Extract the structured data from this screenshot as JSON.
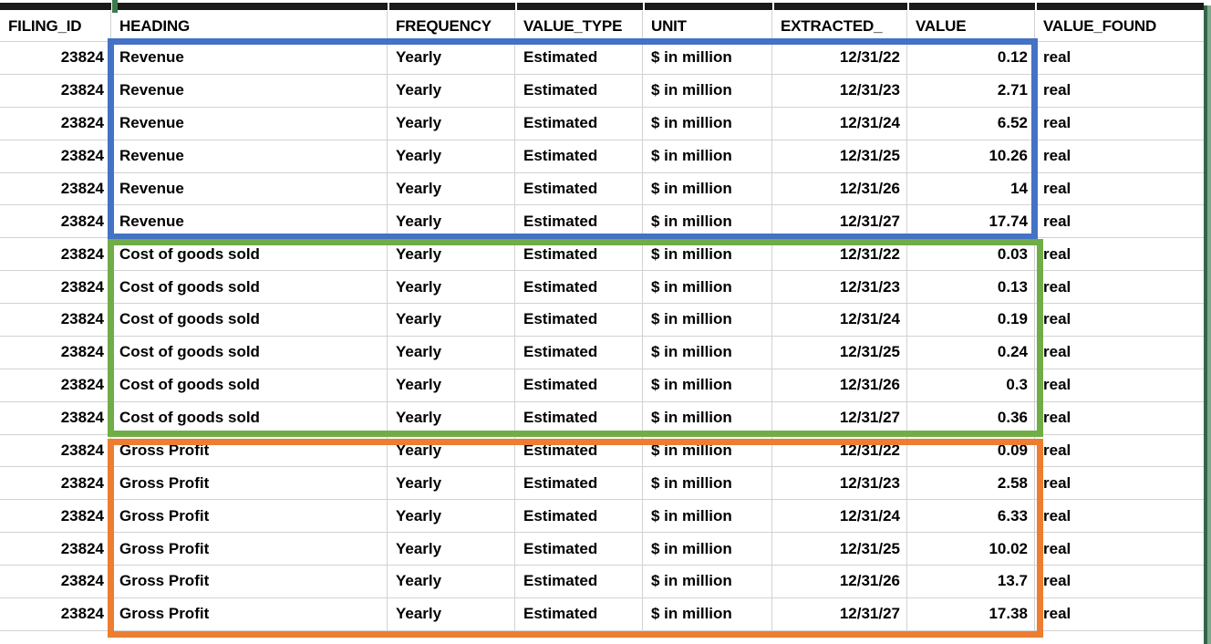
{
  "table": {
    "columns": [
      {
        "key": "filing_id",
        "label": "FILING_ID"
      },
      {
        "key": "heading",
        "label": "HEADING"
      },
      {
        "key": "frequency",
        "label": "FREQUENCY"
      },
      {
        "key": "value_type",
        "label": "VALUE_TYPE"
      },
      {
        "key": "unit",
        "label": "UNIT"
      },
      {
        "key": "extracted",
        "label": "EXTRACTED_"
      },
      {
        "key": "value",
        "label": "VALUE"
      },
      {
        "key": "value_found",
        "label": "VALUE_FOUND"
      }
    ],
    "rows": [
      {
        "filing_id": "23824",
        "heading": "Revenue",
        "frequency": "Yearly",
        "value_type": "Estimated",
        "unit": "$ in million",
        "extracted": "12/31/22",
        "value": "0.12",
        "value_found": "real"
      },
      {
        "filing_id": "23824",
        "heading": "Revenue",
        "frequency": "Yearly",
        "value_type": "Estimated",
        "unit": "$ in million",
        "extracted": "12/31/23",
        "value": "2.71",
        "value_found": "real"
      },
      {
        "filing_id": "23824",
        "heading": "Revenue",
        "frequency": "Yearly",
        "value_type": "Estimated",
        "unit": "$ in million",
        "extracted": "12/31/24",
        "value": "6.52",
        "value_found": "real"
      },
      {
        "filing_id": "23824",
        "heading": "Revenue",
        "frequency": "Yearly",
        "value_type": "Estimated",
        "unit": "$ in million",
        "extracted": "12/31/25",
        "value": "10.26",
        "value_found": "real"
      },
      {
        "filing_id": "23824",
        "heading": "Revenue",
        "frequency": "Yearly",
        "value_type": "Estimated",
        "unit": "$ in million",
        "extracted": "12/31/26",
        "value": "14",
        "value_found": "real"
      },
      {
        "filing_id": "23824",
        "heading": "Revenue",
        "frequency": "Yearly",
        "value_type": "Estimated",
        "unit": "$ in million",
        "extracted": "12/31/27",
        "value": "17.74",
        "value_found": "real"
      },
      {
        "filing_id": "23824",
        "heading": "Cost of goods sold",
        "frequency": "Yearly",
        "value_type": "Estimated",
        "unit": "$ in million",
        "extracted": "12/31/22",
        "value": "0.03",
        "value_found": "real"
      },
      {
        "filing_id": "23824",
        "heading": "Cost of goods sold",
        "frequency": "Yearly",
        "value_type": "Estimated",
        "unit": "$ in million",
        "extracted": "12/31/23",
        "value": "0.13",
        "value_found": "real"
      },
      {
        "filing_id": "23824",
        "heading": "Cost of goods sold",
        "frequency": "Yearly",
        "value_type": "Estimated",
        "unit": "$ in million",
        "extracted": "12/31/24",
        "value": "0.19",
        "value_found": "real"
      },
      {
        "filing_id": "23824",
        "heading": "Cost of goods sold",
        "frequency": "Yearly",
        "value_type": "Estimated",
        "unit": "$ in million",
        "extracted": "12/31/25",
        "value": "0.24",
        "value_found": "real"
      },
      {
        "filing_id": "23824",
        "heading": "Cost of goods sold",
        "frequency": "Yearly",
        "value_type": "Estimated",
        "unit": "$ in million",
        "extracted": "12/31/26",
        "value": "0.3",
        "value_found": "real"
      },
      {
        "filing_id": "23824",
        "heading": "Cost of goods sold",
        "frequency": "Yearly",
        "value_type": "Estimated",
        "unit": "$ in million",
        "extracted": "12/31/27",
        "value": "0.36",
        "value_found": "real"
      },
      {
        "filing_id": "23824",
        "heading": "Gross Profit",
        "frequency": "Yearly",
        "value_type": "Estimated",
        "unit": "$ in million",
        "extracted": "12/31/22",
        "value": "0.09",
        "value_found": "real"
      },
      {
        "filing_id": "23824",
        "heading": "Gross Profit",
        "frequency": "Yearly",
        "value_type": "Estimated",
        "unit": "$ in million",
        "extracted": "12/31/23",
        "value": "2.58",
        "value_found": "real"
      },
      {
        "filing_id": "23824",
        "heading": "Gross Profit",
        "frequency": "Yearly",
        "value_type": "Estimated",
        "unit": "$ in million",
        "extracted": "12/31/24",
        "value": "6.33",
        "value_found": "real"
      },
      {
        "filing_id": "23824",
        "heading": "Gross Profit",
        "frequency": "Yearly",
        "value_type": "Estimated",
        "unit": "$ in million",
        "extracted": "12/31/25",
        "value": "10.02",
        "value_found": "real"
      },
      {
        "filing_id": "23824",
        "heading": "Gross Profit",
        "frequency": "Yearly",
        "value_type": "Estimated",
        "unit": "$ in million",
        "extracted": "12/31/26",
        "value": "13.7",
        "value_found": "real"
      },
      {
        "filing_id": "23824",
        "heading": "Gross Profit",
        "frequency": "Yearly",
        "value_type": "Estimated",
        "unit": "$ in million",
        "extracted": "12/31/27",
        "value": "17.38",
        "value_found": "real"
      }
    ]
  },
  "highlights": [
    {
      "name": "revenue-group",
      "color": "#4472C4"
    },
    {
      "name": "cost-of-goods-sold-group",
      "color": "#70AD47"
    },
    {
      "name": "gross-profit-group",
      "color": "#ED7D31"
    }
  ],
  "colors": {
    "top_bar": "#1a1a1a",
    "grid_line": "#d2d2d2",
    "edge_line": "#336647",
    "column_tick": "#3f7a4e"
  }
}
